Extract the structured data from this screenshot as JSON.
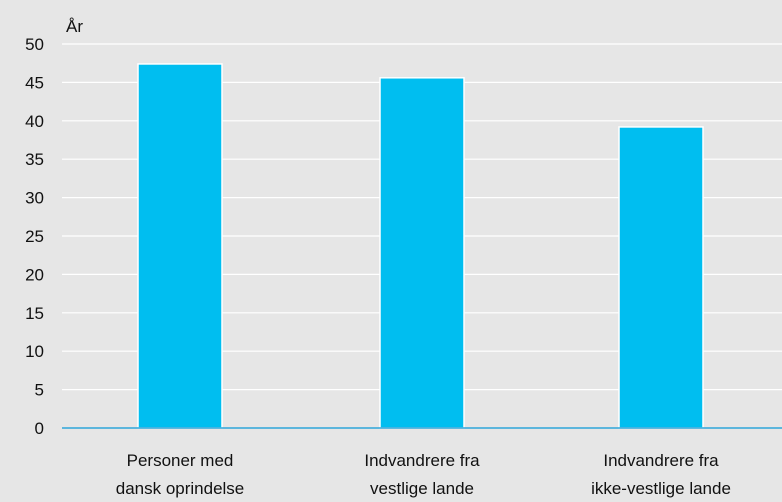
{
  "chart_data": {
    "type": "bar",
    "ylabel": "År",
    "categories": [
      [
        "Personer med",
        "dansk oprindelse"
      ],
      [
        "Indvandrere fra",
        "vestlige lande"
      ],
      [
        "Indvandrere fra",
        "ikke-vestlige lande"
      ]
    ],
    "values": [
      47.4,
      45.6,
      39.2
    ],
    "ylim": [
      0,
      50
    ],
    "yticks": [
      0,
      5,
      10,
      15,
      20,
      25,
      30,
      35,
      40,
      45,
      50
    ],
    "grid": true,
    "colors": {
      "bar": "#00bef0",
      "bar_stroke": "#ffffff",
      "grid": "#ffffff",
      "axis": "#2ea6da",
      "background": "#e6e6e6",
      "text": "#111111"
    }
  }
}
